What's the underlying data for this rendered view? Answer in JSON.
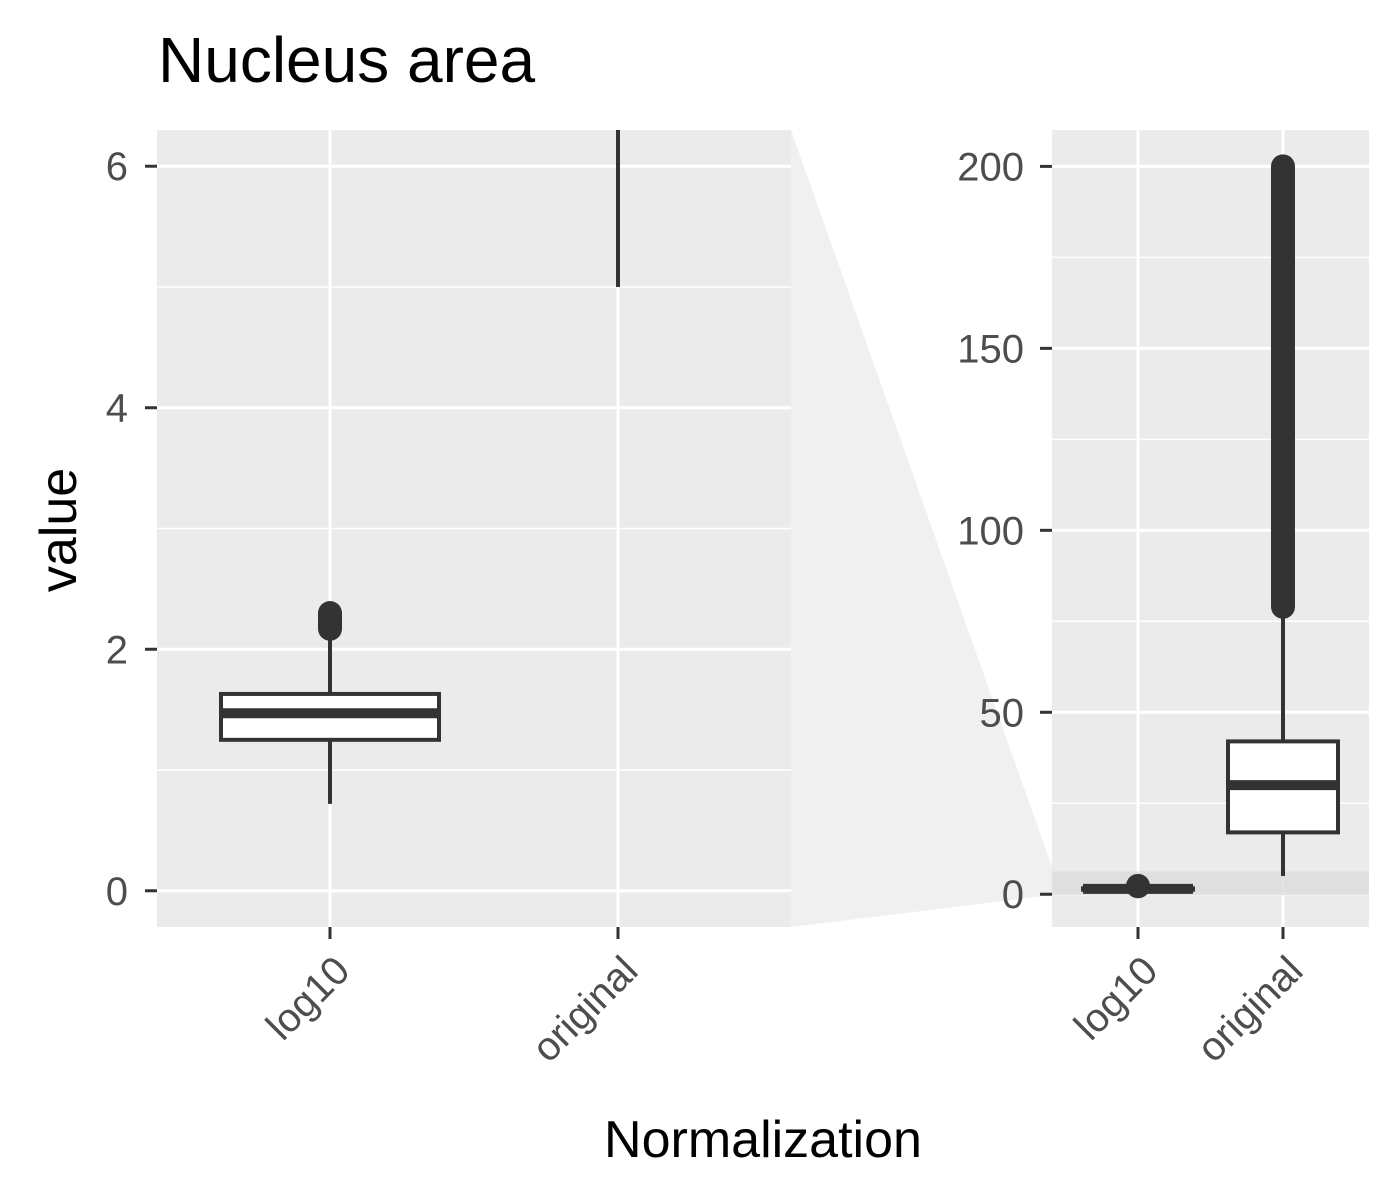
{
  "chart_data": {
    "type": "boxplot",
    "title": "Nucleus area",
    "xlabel": "Normalization",
    "ylabel": "value",
    "categories": [
      "log10",
      "original"
    ],
    "grid": true,
    "panels": [
      {
        "name": "zoomed",
        "ylim": [
          -0.3,
          6.3
        ],
        "yticks": [
          0,
          2,
          4,
          6
        ],
        "tick_labels": [
          "0",
          "2",
          "4",
          "6"
        ],
        "boxes": [
          {
            "category": "log10",
            "whisker_low": 0.72,
            "q1": 1.25,
            "median": 1.47,
            "q3": 1.63,
            "whisker_high": 2.12,
            "outliers_range": [
              2.17,
              2.3
            ]
          },
          {
            "category": "original",
            "whisker_low": 5.0,
            "whisker_high": 6.3
          }
        ]
      },
      {
        "name": "full",
        "ylim": [
          -9,
          210
        ],
        "yticks": [
          0,
          50,
          100,
          150,
          200
        ],
        "tick_labels": [
          "0",
          "50",
          "100",
          "150",
          "200"
        ],
        "boxes": [
          {
            "category": "log10",
            "whisker_low": 0.72,
            "q1": 1.25,
            "median": 1.47,
            "q3": 1.63,
            "whisker_high": 2.12,
            "outliers_range": [
              2.17,
              2.3
            ]
          },
          {
            "category": "original",
            "whisker_low": 5,
            "q1": 17,
            "median": 30,
            "q3": 42,
            "whisker_high": 78,
            "outliers_range": [
              79,
              200
            ]
          }
        ]
      }
    ]
  }
}
